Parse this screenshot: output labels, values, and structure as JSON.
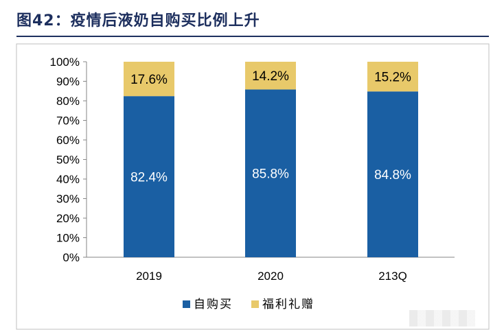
{
  "title": "图42：疫情后液奶自购买比例上升",
  "colors": {
    "self_purchase": "#1a5fa3",
    "gift": "#e8c96a",
    "title": "#1d2f5e"
  },
  "chart_data": {
    "type": "bar",
    "stacked": true,
    "categories": [
      "2019",
      "2020",
      "213Q"
    ],
    "series": [
      {
        "name": "自购买",
        "values": [
          82.4,
          85.8,
          84.8
        ],
        "labels": [
          "82.4%",
          "85.8%",
          "84.8%"
        ]
      },
      {
        "name": "福利礼赠",
        "values": [
          17.6,
          14.2,
          15.2
        ],
        "labels": [
          "17.6%",
          "14.2%",
          "15.2%"
        ]
      }
    ],
    "ylim": [
      0,
      100
    ],
    "yticks": [
      "0%",
      "10%",
      "20%",
      "30%",
      "40%",
      "50%",
      "60%",
      "70%",
      "80%",
      "90%",
      "100%"
    ],
    "legend": "bottom",
    "grid": false
  }
}
